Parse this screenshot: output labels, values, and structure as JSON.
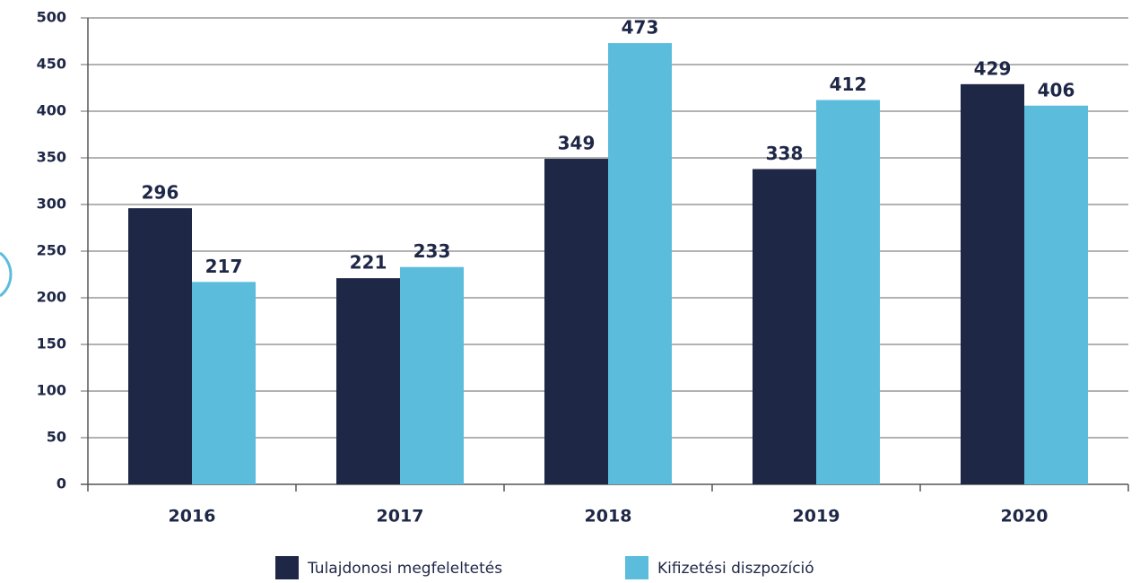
{
  "chart_data": {
    "type": "bar",
    "categories": [
      "2016",
      "2017",
      "2018",
      "2019",
      "2020"
    ],
    "series": [
      {
        "name": "Tulajdonosi megfeleltetés",
        "color": "#1f2747",
        "values": [
          296,
          221,
          349,
          338,
          429
        ]
      },
      {
        "name": "Kifizetési diszpozíció",
        "color": "#5bbcdc",
        "values": [
          217,
          233,
          473,
          412,
          406
        ]
      }
    ],
    "ylim": [
      0,
      500
    ],
    "yticks": [
      0,
      50,
      100,
      150,
      200,
      250,
      300,
      350,
      400,
      450,
      500
    ],
    "grid": true
  }
}
